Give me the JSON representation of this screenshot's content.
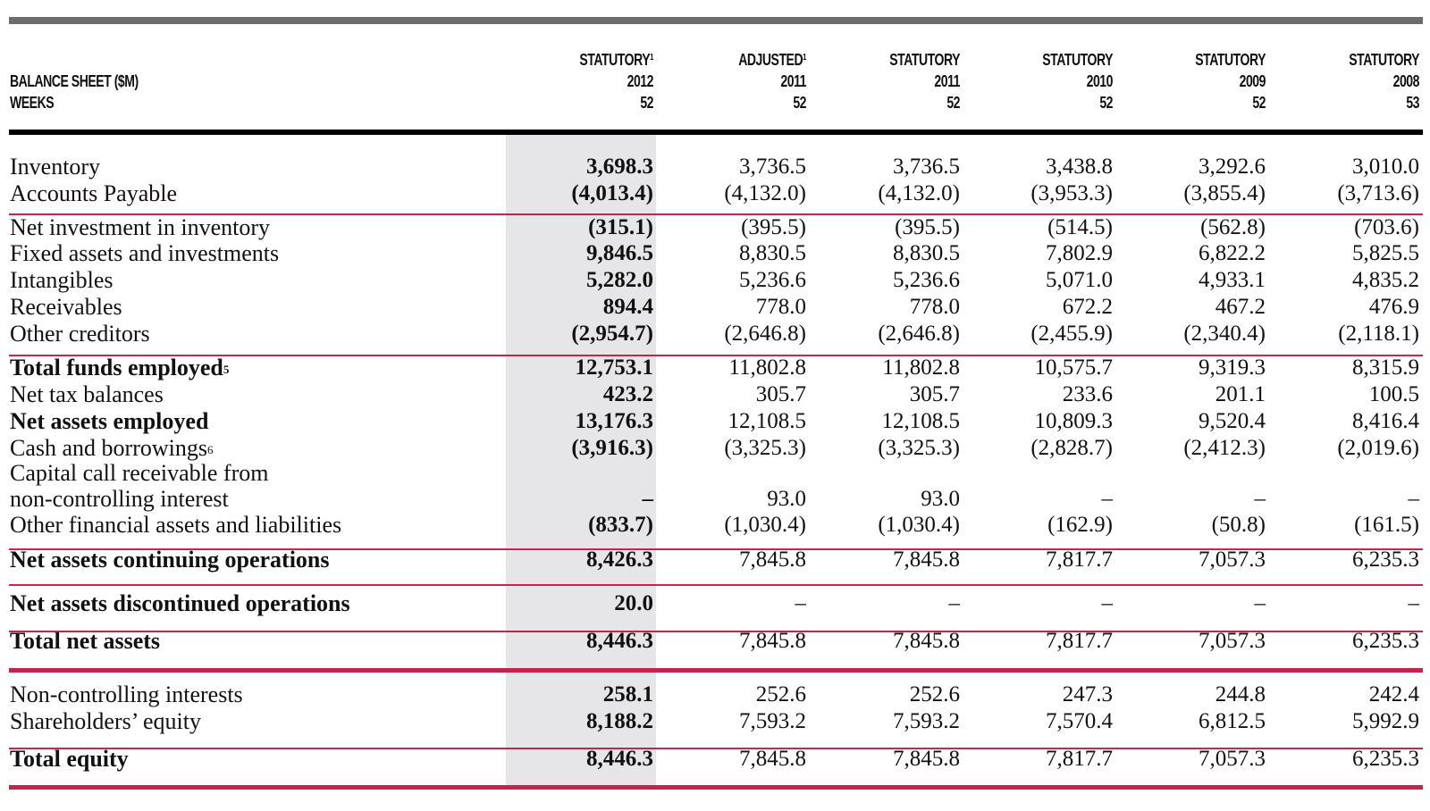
{
  "header": {
    "label_line1": "BALANCE SHEET ($M)",
    "label_line2": "WEEKS",
    "columns": [
      {
        "type": "STATUTORY",
        "note": "1",
        "year": "2012",
        "weeks": "52"
      },
      {
        "type": "ADJUSTED",
        "note": "1",
        "year": "2011",
        "weeks": "52"
      },
      {
        "type": "STATUTORY",
        "note": "",
        "year": "2011",
        "weeks": "52"
      },
      {
        "type": "STATUTORY",
        "note": "",
        "year": "2010",
        "weeks": "52"
      },
      {
        "type": "STATUTORY",
        "note": "",
        "year": "2009",
        "weeks": "52"
      },
      {
        "type": "STATUTORY",
        "note": "",
        "year": "2008",
        "weeks": "53"
      }
    ]
  },
  "rows": [
    {
      "label": "Inventory",
      "note": "",
      "bold": false,
      "values": [
        "3,698.3",
        "3,736.5",
        "3,736.5",
        "3,438.8",
        "3,292.6",
        "3,010.0"
      ]
    },
    {
      "label": "Accounts Payable",
      "note": "",
      "bold": false,
      "values": [
        "(4,013.4)",
        "(4,132.0)",
        "(4,132.0)",
        "(3,953.3)",
        "(3,855.4)",
        "(3,713.6)"
      ]
    },
    {
      "label": "Net investment in inventory",
      "note": "",
      "bold": false,
      "values": [
        "(315.1)",
        "(395.5)",
        "(395.5)",
        "(514.5)",
        "(562.8)",
        "(703.6)"
      ]
    },
    {
      "label": "Fixed assets and investments",
      "note": "",
      "bold": false,
      "values": [
        "9,846.5",
        "8,830.5",
        "8,830.5",
        "7,802.9",
        "6,822.2",
        "5,825.5"
      ]
    },
    {
      "label": "Intangibles",
      "note": "",
      "bold": false,
      "values": [
        "5,282.0",
        "5,236.6",
        "5,236.6",
        "5,071.0",
        "4,933.1",
        "4,835.2"
      ]
    },
    {
      "label": "Receivables",
      "note": "",
      "bold": false,
      "values": [
        "894.4",
        "778.0",
        "778.0",
        "672.2",
        "467.2",
        "476.9"
      ]
    },
    {
      "label": "Other creditors",
      "note": "",
      "bold": false,
      "values": [
        "(2,954.7)",
        "(2,646.8)",
        "(2,646.8)",
        "(2,455.9)",
        "(2,340.4)",
        "(2,118.1)"
      ]
    },
    {
      "label": "Total funds employed",
      "note": "5",
      "bold": true,
      "values": [
        "12,753.1",
        "11,802.8",
        "11,802.8",
        "10,575.7",
        "9,319.3",
        "8,315.9"
      ]
    },
    {
      "label": "Net tax balances",
      "note": "",
      "bold": false,
      "values": [
        "423.2",
        "305.7",
        "305.7",
        "233.6",
        "201.1",
        "100.5"
      ]
    },
    {
      "label": "Net assets employed",
      "note": "",
      "bold": true,
      "values": [
        "13,176.3",
        "12,108.5",
        "12,108.5",
        "10,809.3",
        "9,520.4",
        "8,416.4"
      ]
    },
    {
      "label": "Cash and borrowings",
      "note": "6",
      "bold": false,
      "values": [
        "(3,916.3)",
        "(3,325.3)",
        "(3,325.3)",
        "(2,828.7)",
        "(2,412.3)",
        "(2,019.6)"
      ]
    },
    {
      "label": "Capital call receivable from",
      "note": "",
      "bold": false,
      "values": [
        "",
        "",
        "",
        "",
        "",
        ""
      ]
    },
    {
      "label": "non-controlling interest",
      "note": "",
      "bold": false,
      "values": [
        "–",
        "93.0",
        "93.0",
        "–",
        "–",
        "–"
      ]
    },
    {
      "label": "Other financial assets and liabilities",
      "note": "",
      "bold": false,
      "values": [
        "(833.7)",
        "(1,030.4)",
        "(1,030.4)",
        "(162.9)",
        "(50.8)",
        "(161.5)"
      ]
    },
    {
      "label": "Net assets continuing operations",
      "note": "",
      "bold": true,
      "values": [
        "8,426.3",
        "7,845.8",
        "7,845.8",
        "7,817.7",
        "7,057.3",
        "6,235.3"
      ]
    },
    {
      "label": "Net assets discontinued operations",
      "note": "",
      "bold": true,
      "values": [
        "20.0",
        "–",
        "–",
        "–",
        "–",
        "–"
      ]
    },
    {
      "label": "Total net assets",
      "note": "",
      "bold": true,
      "values": [
        "8,446.3",
        "7,845.8",
        "7,845.8",
        "7,817.7",
        "7,057.3",
        "6,235.3"
      ]
    },
    {
      "label": "Non-controlling interests",
      "note": "",
      "bold": false,
      "values": [
        "258.1",
        "252.6",
        "252.6",
        "247.3",
        "244.8",
        "242.4"
      ]
    },
    {
      "label": "Shareholders’ equity",
      "note": "",
      "bold": false,
      "values": [
        "8,188.2",
        "7,593.2",
        "7,593.2",
        "7,570.4",
        "6,812.5",
        "5,992.9"
      ]
    },
    {
      "label": "Total equity",
      "note": "",
      "bold": true,
      "values": [
        "8,446.3",
        "7,845.8",
        "7,845.8",
        "7,817.7",
        "7,057.3",
        "6,235.3"
      ]
    }
  ]
}
